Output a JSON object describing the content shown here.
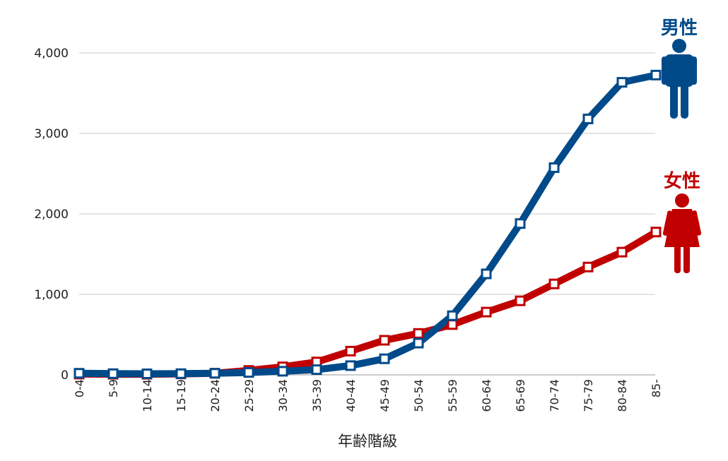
{
  "chart_data": {
    "type": "line",
    "title": "",
    "xlabel": "年齢階級",
    "ylabel": "",
    "ylim": [
      0,
      4000
    ],
    "yticks": [
      0,
      1000,
      2000,
      3000,
      4000
    ],
    "ytick_labels": [
      "0",
      "1,000",
      "2,000",
      "3,000",
      "4,000"
    ],
    "grid": true,
    "categories": [
      "0-4",
      "5-9",
      "10-14",
      "15-19",
      "20-24",
      "25-29",
      "30-34",
      "35-39",
      "40-44",
      "45-49",
      "50-54",
      "55-59",
      "60-64",
      "65-69",
      "70-74",
      "75-79",
      "80-84",
      "85-"
    ],
    "series": [
      {
        "name": "女性",
        "color": "#c00000",
        "icon": "female-person-icon",
        "values": [
          10,
          8,
          8,
          12,
          20,
          55,
          100,
          160,
          295,
          430,
          515,
          625,
          780,
          920,
          1130,
          1340,
          1525,
          1775
        ]
      },
      {
        "name": "男性",
        "color": "#004a8a",
        "icon": "male-person-icon",
        "values": [
          20,
          15,
          13,
          15,
          20,
          30,
          45,
          65,
          115,
          200,
          395,
          735,
          1255,
          1880,
          2575,
          3180,
          3635,
          3725
        ]
      }
    ],
    "legend_placement": "right"
  }
}
